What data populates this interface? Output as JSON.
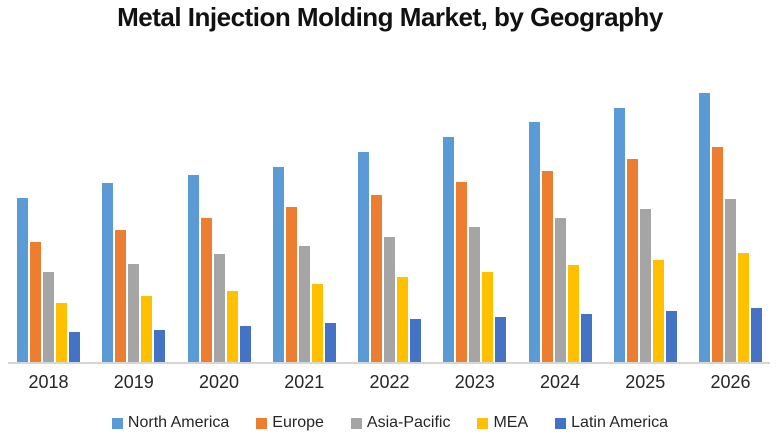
{
  "chart_data": {
    "type": "bar",
    "title": "Metal Injection Molding Market, by Geography",
    "categories": [
      "2018",
      "2019",
      "2020",
      "2021",
      "2022",
      "2023",
      "2024",
      "2025",
      "2026"
    ],
    "series": [
      {
        "name": "North America",
        "color": "#5B9BD5",
        "values": [
          164,
          179,
          187,
          195,
          210,
          225,
          240,
          254,
          269
        ]
      },
      {
        "name": "Europe",
        "color": "#ED7D31",
        "values": [
          120,
          132,
          144,
          155,
          167,
          180,
          191,
          203,
          215
        ]
      },
      {
        "name": "Asia-Pacific",
        "color": "#A5A5A5",
        "values": [
          90,
          98,
          108,
          116,
          125,
          135,
          144,
          153,
          163
        ]
      },
      {
        "name": "MEA",
        "color": "#FFC000",
        "values": [
          59,
          66,
          71,
          78,
          85,
          90,
          97,
          102,
          109
        ]
      },
      {
        "name": "Latin America",
        "color": "#4472C4",
        "values": [
          30,
          32,
          36,
          39,
          43,
          45,
          48,
          51,
          54
        ]
      }
    ],
    "ylim": [
      0,
      300
    ],
    "xlabel": "",
    "ylabel": "",
    "y_axis_visible": false,
    "gridlines": false,
    "legend_position": "bottom",
    "axis_line_color": "#D6D6D6",
    "text_color": "#262626",
    "title_color": "#111111",
    "background_color": "#FFFFFF"
  }
}
